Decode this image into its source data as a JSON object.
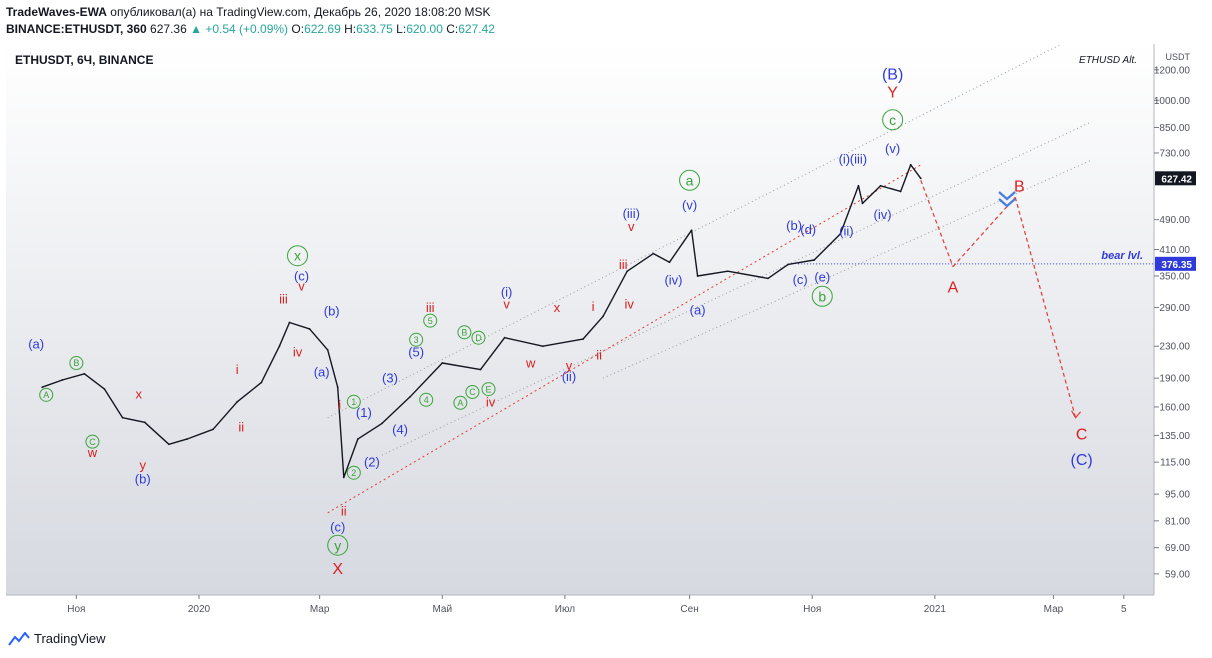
{
  "header": {
    "author": "TradeWaves-EWA",
    "published_text": "опубликовал(а) на TradingView.com, Декабрь 26, 2020 18:08:20 MSK",
    "symbol_line": "BINANCE:ETHUSDT, 360",
    "last": "627.36",
    "change": "+0.54 (+0.09%)",
    "o_label": "O:",
    "o_value": "622.69",
    "h_label": "H:",
    "h_value": "633.75",
    "l_label": "L:",
    "l_value": "620.00",
    "c_label": "C:",
    "c_value": "627.42"
  },
  "chart_data": {
    "type": "line",
    "title": "ETHUSDT, 6Ч, BINANCE",
    "watermark": "ETHUSD Alt.",
    "currency": "USDT",
    "scale": "log",
    "ylim": [
      52,
      1400
    ],
    "price_ticks": [
      1200,
      1000,
      850,
      730,
      490,
      410,
      350,
      290,
      230,
      190,
      160,
      135,
      115,
      95,
      81,
      69,
      59
    ],
    "time_ticks": [
      "Ноя",
      "2020",
      "Мар",
      "Май",
      "Июл",
      "Сен",
      "Ноя",
      "2021",
      "Мар",
      "5"
    ],
    "last_price_label": "627.42",
    "level_label": "376.35",
    "level_value": 376.35,
    "level_name": "bear lvl.",
    "series": [
      {
        "x": [
          "2019-10-15",
          "2019-10-25",
          "2019-11-05",
          "2019-11-15",
          "2019-11-24",
          "2019-12-05",
          "2019-12-17",
          "2019-12-26",
          "2020-01-08",
          "2020-01-20",
          "2020-02-01",
          "2020-02-10",
          "2020-02-15",
          "2020-02-25",
          "2020-03-05",
          "2020-03-10",
          "2020-03-13",
          "2020-03-20",
          "2020-04-01",
          "2020-04-15",
          "2020-05-01",
          "2020-05-20",
          "2020-06-01",
          "2020-06-20",
          "2020-07-10",
          "2020-07-20",
          "2020-08-01",
          "2020-08-14",
          "2020-08-22",
          "2020-09-02",
          "2020-09-05",
          "2020-09-20",
          "2020-10-10",
          "2020-10-20",
          "2020-11-02",
          "2020-11-15",
          "2020-11-24",
          "2020-11-26",
          "2020-12-05",
          "2020-12-15",
          "2020-12-20",
          "2020-12-25"
        ],
        "y": [
          180,
          188,
          195,
          178,
          150,
          146,
          128,
          132,
          140,
          165,
          185,
          230,
          265,
          255,
          225,
          180,
          105,
          132,
          145,
          170,
          208,
          200,
          242,
          230,
          240,
          275,
          360,
          400,
          380,
          460,
          350,
          360,
          345,
          375,
          385,
          450,
          600,
          540,
          600,
          580,
          680,
          627
        ]
      }
    ],
    "projection": {
      "x": [
        "2020-12-25",
        "2021-01-10",
        "2021-02-10",
        "2021-03-12"
      ],
      "y": [
        620,
        370,
        560,
        150
      ]
    },
    "wave_labels": [
      {
        "text": "(a)",
        "color": "#2f3adb",
        "x": "2019-10-12",
        "y": 233
      },
      {
        "text": "B",
        "color": "#3aa33a",
        "circle": true,
        "x": "2019-11-01",
        "y": 208
      },
      {
        "text": "A",
        "color": "#3aa33a",
        "circle": true,
        "x": "2019-10-17",
        "y": 172
      },
      {
        "text": "x",
        "color": "#d91f1f",
        "x": "2019-12-02",
        "y": 173
      },
      {
        "text": "C",
        "color": "#3aa33a",
        "circle": true,
        "x": "2019-11-09",
        "y": 130
      },
      {
        "text": "w",
        "color": "#d91f1f",
        "x": "2019-11-09",
        "y": 122
      },
      {
        "text": "y",
        "color": "#d91f1f",
        "x": "2019-12-04",
        "y": 113
      },
      {
        "text": "(b)",
        "color": "#2f3adb",
        "x": "2019-12-04",
        "y": 104
      },
      {
        "text": "i",
        "color": "#d91f1f",
        "x": "2020-01-20",
        "y": 200
      },
      {
        "text": "ii",
        "color": "#d91f1f",
        "x": "2020-01-22",
        "y": 142
      },
      {
        "text": "x",
        "color": "#3aa33a",
        "circle": true,
        "x": "2020-02-19",
        "y": 395
      },
      {
        "text": "(c)",
        "color": "#2f3adb",
        "x": "2020-02-21",
        "y": 350
      },
      {
        "text": "v",
        "color": "#d91f1f",
        "x": "2020-02-21",
        "y": 330
      },
      {
        "text": "iii",
        "color": "#d91f1f",
        "x": "2020-02-12",
        "y": 305
      },
      {
        "text": "(b)",
        "color": "#2f3adb",
        "x": "2020-03-07",
        "y": 284
      },
      {
        "text": "iv",
        "color": "#d91f1f",
        "x": "2020-02-19",
        "y": 222
      },
      {
        "text": "(a)",
        "color": "#2f3adb",
        "x": "2020-03-02",
        "y": 197
      },
      {
        "text": "i",
        "color": "#d91f1f",
        "x": "2020-03-11",
        "y": 162
      },
      {
        "text": "ii",
        "color": "#d91f1f",
        "x": "2020-03-13",
        "y": 86
      },
      {
        "text": "(c)",
        "color": "#2f3adb",
        "x": "2020-03-10",
        "y": 78
      },
      {
        "text": "y",
        "color": "#3aa33a",
        "circle": true,
        "x": "2020-03-10",
        "y": 70
      },
      {
        "text": "X",
        "color": "#d91f1f",
        "x": "2020-03-10",
        "y": 61
      },
      {
        "text": "1",
        "color": "#3aa33a",
        "circle": true,
        "x": "2020-03-18",
        "y": 165
      },
      {
        "text": "(1)",
        "color": "#2f3adb",
        "x": "2020-03-23",
        "y": 155
      },
      {
        "text": "(2)",
        "color": "#2f3adb",
        "x": "2020-03-27",
        "y": 115
      },
      {
        "text": "2",
        "color": "#3aa33a",
        "circle": true,
        "x": "2020-03-18",
        "y": 108
      },
      {
        "text": "(3)",
        "color": "#2f3adb",
        "x": "2020-04-05",
        "y": 190
      },
      {
        "text": "(4)",
        "color": "#2f3adb",
        "x": "2020-04-10",
        "y": 140
      },
      {
        "text": "(5)",
        "color": "#2f3adb",
        "x": "2020-04-18",
        "y": 222
      },
      {
        "text": "3",
        "color": "#3aa33a",
        "circle": true,
        "x": "2020-04-18",
        "y": 239
      },
      {
        "text": "5",
        "color": "#3aa33a",
        "circle": true,
        "x": "2020-04-25",
        "y": 268
      },
      {
        "text": "4",
        "color": "#3aa33a",
        "circle": true,
        "x": "2020-04-23",
        "y": 167
      },
      {
        "text": "iii",
        "color": "#d91f1f",
        "x": "2020-04-25",
        "y": 290
      },
      {
        "text": "B",
        "color": "#3aa33a",
        "circle": true,
        "x": "2020-05-12",
        "y": 250
      },
      {
        "text": "D",
        "color": "#3aa33a",
        "circle": true,
        "x": "2020-05-19",
        "y": 242
      },
      {
        "text": "A",
        "color": "#3aa33a",
        "circle": true,
        "x": "2020-05-10",
        "y": 164
      },
      {
        "text": "C",
        "color": "#3aa33a",
        "circle": true,
        "x": "2020-05-16",
        "y": 175
      },
      {
        "text": "E",
        "color": "#3aa33a",
        "circle": true,
        "x": "2020-05-24",
        "y": 178
      },
      {
        "text": "iv",
        "color": "#d91f1f",
        "x": "2020-05-25",
        "y": 165
      },
      {
        "text": "(i)",
        "color": "#2f3adb",
        "x": "2020-06-02",
        "y": 318
      },
      {
        "text": "v",
        "color": "#d91f1f",
        "x": "2020-06-02",
        "y": 296
      },
      {
        "text": "w",
        "color": "#d91f1f",
        "x": "2020-06-14",
        "y": 208
      },
      {
        "text": "x",
        "color": "#d91f1f",
        "x": "2020-06-27",
        "y": 290
      },
      {
        "text": "y",
        "color": "#d91f1f",
        "x": "2020-07-03",
        "y": 205
      },
      {
        "text": "(ii)",
        "color": "#2f3adb",
        "x": "2020-07-03",
        "y": 192
      },
      {
        "text": "i",
        "color": "#d91f1f",
        "x": "2020-07-15",
        "y": 292
      },
      {
        "text": "ii",
        "color": "#d91f1f",
        "x": "2020-07-18",
        "y": 218
      },
      {
        "text": "iii",
        "color": "#d91f1f",
        "x": "2020-07-30",
        "y": 375
      },
      {
        "text": "iv",
        "color": "#d91f1f",
        "x": "2020-08-02",
        "y": 296
      },
      {
        "text": "(iii)",
        "color": "#2f3adb",
        "x": "2020-08-03",
        "y": 508
      },
      {
        "text": "v",
        "color": "#d91f1f",
        "x": "2020-08-03",
        "y": 470
      },
      {
        "text": "(iv)",
        "color": "#2f3adb",
        "x": "2020-08-24",
        "y": 342
      },
      {
        "text": "a",
        "color": "#3aa33a",
        "circle": true,
        "x": "2020-09-01",
        "y": 620
      },
      {
        "text": "(v)",
        "color": "#2f3adb",
        "x": "2020-09-01",
        "y": 535
      },
      {
        "text": "(a)",
        "color": "#2f3adb",
        "x": "2020-09-05",
        "y": 286
      },
      {
        "text": "(b)",
        "color": "#2f3adb",
        "x": "2020-10-23",
        "y": 473
      },
      {
        "text": "(d)",
        "color": "#2f3adb",
        "x": "2020-10-30",
        "y": 462
      },
      {
        "text": "(c)",
        "color": "#2f3adb",
        "x": "2020-10-26",
        "y": 343
      },
      {
        "text": "(e)",
        "color": "#2f3adb",
        "x": "2020-11-06",
        "y": 348
      },
      {
        "text": "b",
        "color": "#3aa33a",
        "circle": true,
        "x": "2020-11-06",
        "y": 310
      },
      {
        "text": "(ii)",
        "color": "#2f3adb",
        "x": "2020-11-18",
        "y": 458
      },
      {
        "text": "(i)",
        "color": "#2f3adb",
        "x": "2020-11-17",
        "y": 705
      },
      {
        "text": "(iii)",
        "color": "#2f3adb",
        "x": "2020-11-24",
        "y": 705
      },
      {
        "text": "(iv)",
        "color": "#2f3adb",
        "x": "2020-12-06",
        "y": 505
      },
      {
        "text": "(v)",
        "color": "#2f3adb",
        "x": "2020-12-11",
        "y": 750
      },
      {
        "text": "c",
        "color": "#3aa33a",
        "circle": true,
        "x": "2020-12-11",
        "y": 890
      },
      {
        "text": "Y",
        "color": "#d91f1f",
        "x": "2020-12-11",
        "y": 1050
      },
      {
        "text": "(B)",
        "color": "#2f3adb",
        "x": "2020-12-11",
        "y": 1170
      },
      {
        "text": "A",
        "color": "#d91f1f",
        "x": "2021-01-10",
        "y": 328
      },
      {
        "text": "B",
        "color": "#d91f1f",
        "x": "2021-02-12",
        "y": 600
      },
      {
        "text": "C",
        "color": "#d91f1f",
        "x": "2021-03-15",
        "y": 136
      },
      {
        "text": "(C)",
        "color": "#2f3adb",
        "x": "2021-03-15",
        "y": 117
      }
    ]
  },
  "footer": {
    "brand": "TradingView"
  }
}
